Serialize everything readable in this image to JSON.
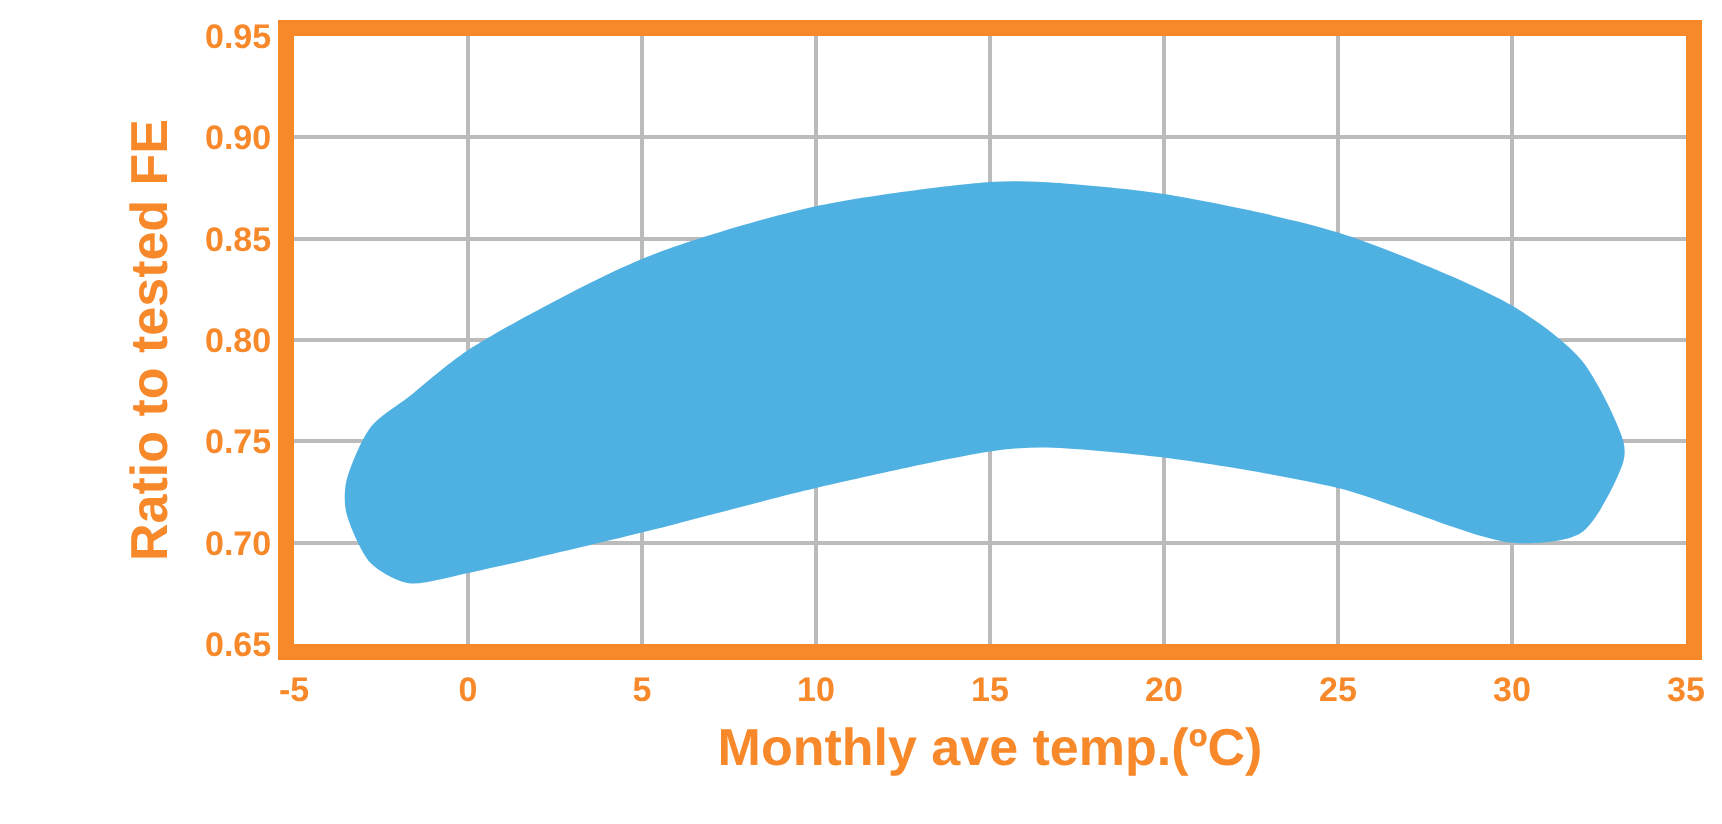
{
  "chart_data": {
    "type": "area",
    "xlabel": "Monthly ave temp.(ºC)",
    "ylabel": "Ratio to tested FE",
    "x": [
      -3.5,
      -2.8,
      -1.7,
      0,
      5,
      10,
      15,
      16.5,
      20,
      25,
      30,
      32,
      33.2
    ],
    "series": [
      {
        "color": "#4fb0e2",
        "values": [
          null,
          null,
          null,
          null,
          null,
          null,
          null,
          null,
          null,
          null,
          null,
          null,
          null
        ],
        "lower": [
          0.715,
          0.69,
          0.68,
          0.685,
          0.705,
          0.727,
          0.745,
          0.747,
          0.742,
          0.727,
          0.7,
          0.705,
          0.74
        ],
        "upper": [
          0.73,
          0.757,
          0.772,
          0.795,
          0.84,
          0.866,
          0.878,
          0.878,
          0.872,
          0.853,
          0.817,
          0.79,
          0.75
        ]
      }
    ],
    "xlim": [
      -5,
      35
    ],
    "xticks": [
      -5,
      0,
      5,
      10,
      15,
      20,
      25,
      30,
      35
    ],
    "ylim": [
      0.65,
      0.95
    ],
    "yticks": [
      0.65,
      {
        "value": 0.7,
        "label": "0.70"
      },
      0.75,
      {
        "value": 0.8,
        "label": "0.80"
      },
      0.85,
      {
        "value": 0.9,
        "label": "0.90"
      },
      0.95
    ],
    "grid": true
  }
}
